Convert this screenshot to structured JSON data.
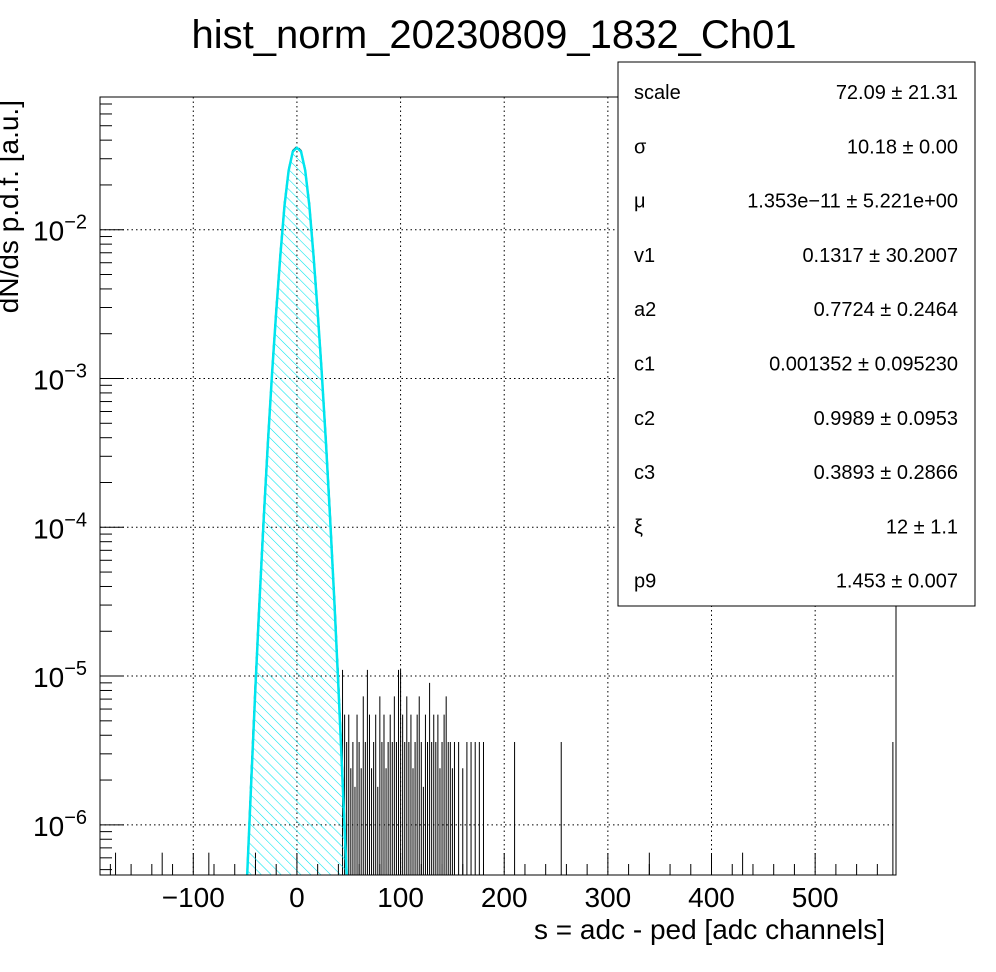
{
  "chart_data": {
    "type": "histogram",
    "title": "hist_norm_20230809_1832_Ch01",
    "xlabel": "s = adc - ped [adc channels]",
    "ylabel": "dN/ds p.d.f. [a.u.]",
    "xlim": [
      -190,
      578
    ],
    "ylim": [
      4.6e-07,
      0.078
    ],
    "y_scale": "log",
    "grid": true,
    "x_ticks": [
      -100,
      0,
      100,
      200,
      300,
      400,
      500
    ],
    "x_tick_labels": [
      "−100",
      "0",
      "100",
      "200",
      "300",
      "400",
      "500"
    ],
    "y_ticks": [
      {
        "value": 1e-06,
        "base": "10",
        "exp": "−6"
      },
      {
        "value": 1e-05,
        "base": "10",
        "exp": "−5"
      },
      {
        "value": 0.0001,
        "base": "10",
        "exp": "−4"
      },
      {
        "value": 0.001,
        "base": "10",
        "exp": "−3"
      },
      {
        "value": 0.01,
        "base": "10",
        "exp": "−2"
      }
    ],
    "series": [
      {
        "type": "histogram-peak",
        "color": "#000000",
        "x": [
          -48,
          -44,
          -40,
          -36,
          -32,
          -28,
          -24,
          -20,
          -16,
          -12,
          -8,
          -4,
          0,
          4,
          8,
          12,
          16,
          20,
          24,
          28,
          32,
          36,
          40,
          44,
          48
        ],
        "y": [
          5e-07,
          2.3e-06,
          9.6e-06,
          3.65e-05,
          0.000127,
          0.0004,
          0.00115,
          0.003,
          0.0071,
          0.0152,
          0.0255,
          0.034,
          0.0362,
          0.034,
          0.0255,
          0.0152,
          0.0071,
          0.003,
          0.00115,
          0.0004,
          0.000127,
          3.65e-05,
          9.6e-06,
          2.3e-06,
          5e-07
        ]
      },
      {
        "type": "histogram-tail",
        "color": "#000000",
        "x": [
          -175,
          -130,
          -85,
          -40,
          44,
          46,
          48,
          50,
          52,
          54,
          56,
          58,
          60,
          62,
          64,
          66,
          68,
          70,
          72,
          74,
          76,
          78,
          80,
          82,
          84,
          86,
          88,
          90,
          92,
          94,
          96,
          98,
          100,
          102,
          104,
          106,
          108,
          110,
          112,
          114,
          116,
          118,
          120,
          122,
          124,
          126,
          128,
          130,
          132,
          134,
          136,
          138,
          140,
          142,
          144,
          146,
          148,
          150,
          152,
          156,
          160,
          164,
          168,
          172,
          176,
          180,
          210,
          255,
          340,
          430,
          575
        ],
        "y": [
          6.5e-07,
          6.5e-07,
          6.5e-07,
          6.5e-07,
          1.1e-05,
          5.5e-06,
          3.6e-06,
          5.5e-06,
          2.4e-06,
          3.6e-06,
          1.8e-06,
          5.5e-06,
          3.6e-06,
          2.4e-06,
          7.3e-06,
          3.6e-06,
          1.1e-05,
          5.5e-06,
          2.4e-06,
          3.6e-06,
          5.5e-06,
          1.8e-06,
          7.3e-06,
          3.6e-06,
          5.5e-06,
          2.4e-06,
          3.6e-06,
          5.5e-06,
          3.6e-06,
          7.3e-06,
          3.6e-06,
          1.1e-05,
          1.1e-05,
          5.5e-06,
          3.6e-06,
          7.3e-06,
          3.6e-06,
          5.5e-06,
          2.4e-06,
          3.6e-06,
          5.5e-06,
          7.3e-06,
          3.6e-06,
          1.8e-06,
          5.5e-06,
          3.6e-06,
          9e-06,
          3.6e-06,
          5.5e-06,
          3.6e-06,
          5.5e-06,
          2.4e-06,
          3.6e-06,
          5.5e-06,
          7.3e-06,
          3.6e-06,
          3.6e-06,
          2.4e-06,
          3.6e-06,
          3.6e-06,
          2.4e-06,
          3.6e-06,
          3.6e-06,
          3.6e-06,
          3.6e-06,
          3.6e-06,
          3.6e-06,
          3.6e-06,
          6.5e-07,
          6.5e-07,
          3.6e-06
        ]
      },
      {
        "type": "fit-curve-filled",
        "color": "#00e5ee",
        "fill_pattern": "diagonal-hatch",
        "x": [
          -48,
          -44,
          -40,
          -36,
          -32,
          -28,
          -24,
          -20,
          -16,
          -12,
          -8,
          -4,
          0,
          4,
          8,
          12,
          16,
          20,
          24,
          28,
          32,
          36,
          40,
          44,
          48
        ],
        "y": [
          4.6e-07,
          2e-06,
          8.5e-06,
          3.3e-05,
          0.000115,
          0.00037,
          0.00108,
          0.0028,
          0.0067,
          0.0145,
          0.025,
          0.0335,
          0.0355,
          0.0335,
          0.025,
          0.0145,
          0.0067,
          0.0028,
          0.00108,
          0.00037,
          0.000115,
          3.3e-05,
          8.5e-06,
          2e-06,
          4.6e-07
        ]
      }
    ],
    "stats_box": {
      "placement": "top-right",
      "rows": [
        {
          "key": "scale",
          "value": "72.09 ± 21.31"
        },
        {
          "key": "σ",
          "value": "10.18 ± 0.00"
        },
        {
          "key": "μ",
          "value": "1.353e−11 ± 5.221e+00"
        },
        {
          "key": "v1",
          "value": "0.1317 ± 30.2007"
        },
        {
          "key": "a2",
          "value": "0.7724 ± 0.2464"
        },
        {
          "key": "c1",
          "value": "0.001352 ± 0.095230"
        },
        {
          "key": "c2",
          "value": "0.9989 ± 0.0953"
        },
        {
          "key": "c3",
          "value": "0.3893 ± 0.2866"
        },
        {
          "key": "ξ",
          "value": "12 ± 1.1"
        },
        {
          "key": "p9",
          "value": "1.453 ± 0.007"
        }
      ]
    }
  }
}
